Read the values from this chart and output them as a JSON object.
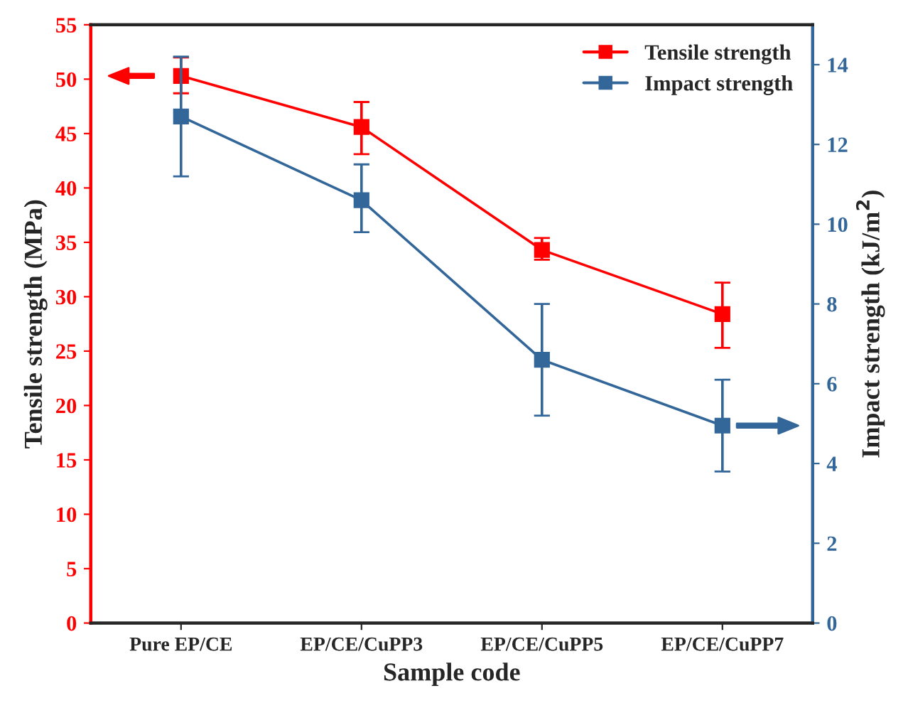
{
  "chart_data": {
    "type": "line",
    "xlabel": "Sample code",
    "ylabel": "Tensile strength (MPa)",
    "y2label": "Impact strength (kJ/m$^{2}$)",
    "categories": [
      "Pure EP/CE",
      "EP/CE/CuPP3",
      "EP/CE/CuPP5",
      "EP/CE/CuPP7"
    ],
    "series": [
      {
        "name": "Tensile strength",
        "color": "#ff0000",
        "values": [
          50.3,
          45.6,
          34.3,
          28.4
        ],
        "errors": [
          [
            48.7,
            52.0
          ],
          [
            43.1,
            47.9
          ],
          [
            33.4,
            35.4
          ],
          [
            25.3,
            31.3
          ]
        ]
      },
      {
        "name": "Impact strength",
        "color": "#336699",
        "axis": "y2",
        "values": [
          12.7,
          10.6,
          6.6,
          4.95
        ],
        "errors": [
          [
            11.2,
            14.2
          ],
          [
            9.8,
            11.5
          ],
          [
            5.2,
            8.0
          ],
          [
            3.8,
            6.1
          ]
        ]
      }
    ],
    "ylim": [
      0,
      55
    ],
    "yticks": [
      0,
      5,
      10,
      15,
      20,
      25,
      30,
      35,
      40,
      45,
      50,
      55
    ],
    "y2lim": [
      0,
      15
    ],
    "y2ticks": [
      0,
      2,
      4,
      6,
      8,
      10,
      12,
      14
    ],
    "marker": "square",
    "line_style": "solid",
    "legend": "top right",
    "grid": false
  }
}
